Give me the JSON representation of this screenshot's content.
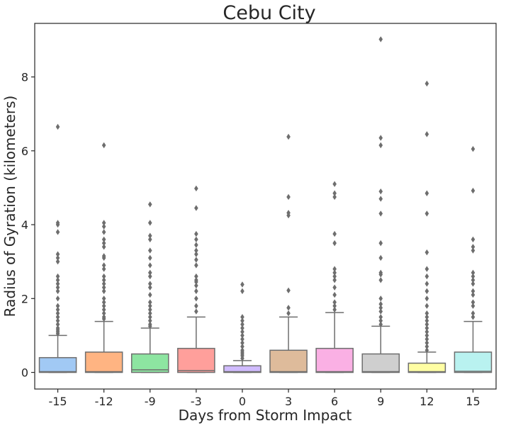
{
  "chart_data": {
    "type": "box",
    "title": "Cebu City",
    "xlabel": "Days from Storm Impact",
    "ylabel": "Radius of Gyration (kilometers)",
    "ylim": [
      -0.45,
      9.45
    ],
    "yticks": [
      0,
      2,
      4,
      6,
      8
    ],
    "ytick_labels": [
      "0",
      "2",
      "4",
      "6",
      "8"
    ],
    "grid": false,
    "legend": "none",
    "categories": [
      "-15",
      "-12",
      "-9",
      "-3",
      "0",
      "3",
      "6",
      "9",
      "12",
      "15"
    ],
    "boxes": [
      {
        "category": "-15",
        "color": "#a1c9f4",
        "q1": 0.0,
        "median": 0.02,
        "q3": 0.4,
        "whisker_low": 0.0,
        "whisker_high": 1.0,
        "outliers": [
          1.05,
          1.1,
          1.15,
          1.2,
          1.3,
          1.4,
          1.5,
          1.6,
          1.7,
          1.8,
          2.0,
          2.2,
          2.3,
          2.4,
          2.5,
          2.6,
          3.0,
          3.1,
          3.2,
          3.8,
          4.0,
          4.05,
          6.65
        ]
      },
      {
        "category": "-12",
        "color": "#ffb482",
        "q1": 0.0,
        "median": 0.02,
        "q3": 0.55,
        "whisker_low": 0.0,
        "whisker_high": 1.38,
        "outliers": [
          1.45,
          1.5,
          1.6,
          1.7,
          1.8,
          1.9,
          2.0,
          2.2,
          2.3,
          2.4,
          2.5,
          2.6,
          2.8,
          2.9,
          3.1,
          3.15,
          3.4,
          3.5,
          3.6,
          3.8,
          3.95,
          4.05,
          6.15
        ]
      },
      {
        "category": "-9",
        "color": "#8de5a1",
        "q1": 0.0,
        "median": 0.07,
        "q3": 0.5,
        "whisker_low": 0.0,
        "whisker_high": 1.2,
        "outliers": [
          1.25,
          1.3,
          1.4,
          1.5,
          1.6,
          1.7,
          1.8,
          1.9,
          2.1,
          2.3,
          2.4,
          2.6,
          2.7,
          2.9,
          3.1,
          3.3,
          3.6,
          3.7,
          4.05,
          4.55
        ]
      },
      {
        "category": "-3",
        "color": "#ff9f9b",
        "q1": 0.0,
        "median": 0.05,
        "q3": 0.65,
        "whisker_low": 0.0,
        "whisker_high": 1.5,
        "outliers": [
          1.65,
          1.8,
          2.0,
          2.2,
          2.35,
          2.45,
          2.5,
          2.6,
          2.9,
          3.05,
          3.2,
          3.3,
          3.45,
          3.6,
          3.75,
          4.45,
          4.98
        ]
      },
      {
        "category": "0",
        "color": "#d0bbff",
        "q1": 0.0,
        "median": 0.02,
        "q3": 0.18,
        "whisker_low": 0.0,
        "whisker_high": 0.32,
        "outliers": [
          0.38,
          0.45,
          0.5,
          0.55,
          0.6,
          0.7,
          0.8,
          0.9,
          1.0,
          1.1,
          1.2,
          1.3,
          1.4,
          1.5,
          2.2,
          2.38
        ]
      },
      {
        "category": "3",
        "color": "#debb9b",
        "q1": 0.0,
        "median": 0.02,
        "q3": 0.6,
        "whisker_low": 0.0,
        "whisker_high": 1.5,
        "outliers": [
          1.6,
          1.75,
          2.22,
          4.25,
          4.32,
          4.75,
          6.38
        ]
      },
      {
        "category": "6",
        "color": "#fab0e4",
        "q1": 0.0,
        "median": 0.02,
        "q3": 0.65,
        "whisker_low": 0.0,
        "whisker_high": 1.62,
        "outliers": [
          1.7,
          1.8,
          1.9,
          2.1,
          2.3,
          2.5,
          2.6,
          2.7,
          2.8,
          3.5,
          3.75,
          4.75,
          4.85,
          5.1
        ]
      },
      {
        "category": "9",
        "color": "#cfcfcf",
        "q1": 0.0,
        "median": 0.02,
        "q3": 0.5,
        "whisker_low": 0.0,
        "whisker_high": 1.25,
        "outliers": [
          1.3,
          1.4,
          1.5,
          1.65,
          1.75,
          1.85,
          2.0,
          2.5,
          2.65,
          2.7,
          3.1,
          3.5,
          4.3,
          4.7,
          4.9,
          6.15,
          6.35,
          9.02
        ]
      },
      {
        "category": "12",
        "color": "#fffea3",
        "q1": 0.0,
        "median": 0.02,
        "q3": 0.25,
        "whisker_low": 0.0,
        "whisker_high": 0.55,
        "outliers": [
          0.6,
          0.7,
          0.8,
          0.9,
          1.0,
          1.1,
          1.2,
          1.3,
          1.4,
          1.5,
          1.6,
          1.8,
          2.0,
          2.2,
          2.4,
          2.6,
          2.8,
          3.25,
          4.3,
          4.85,
          6.45,
          7.82
        ]
      },
      {
        "category": "15",
        "color": "#b9f2f0",
        "q1": 0.0,
        "median": 0.03,
        "q3": 0.55,
        "whisker_low": 0.0,
        "whisker_high": 1.38,
        "outliers": [
          1.5,
          1.6,
          1.8,
          1.9,
          2.1,
          2.2,
          2.4,
          2.5,
          2.6,
          2.7,
          3.3,
          3.4,
          3.6,
          4.92,
          6.05
        ]
      }
    ]
  }
}
